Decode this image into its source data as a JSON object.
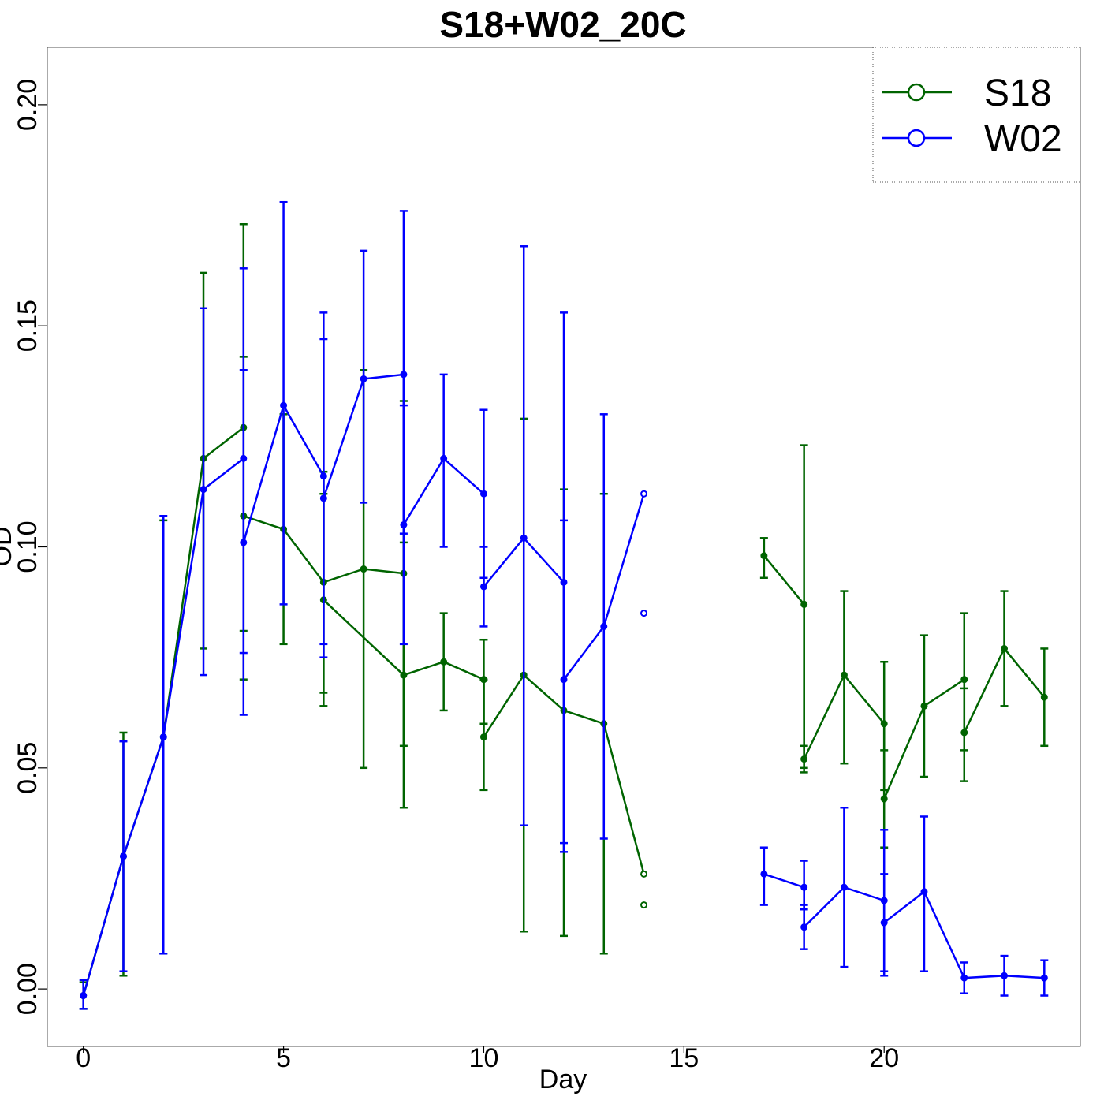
{
  "chart_data": {
    "type": "line",
    "title": "S18+W02_20C",
    "xlabel": "Day",
    "ylabel": "OD",
    "xlim": [
      -0.9,
      24.9
    ],
    "ylim": [
      -0.013,
      0.213
    ],
    "xticks": [
      0,
      5,
      10,
      15,
      20
    ],
    "yticks": [
      0.0,
      0.05,
      0.1,
      0.15,
      0.2
    ],
    "ytick_labels": [
      "0.00",
      "0.05",
      "0.10",
      "0.15",
      "0.20"
    ],
    "grid": false,
    "legend_position": "top-right",
    "series": [
      {
        "name": "S18",
        "color": "#006400",
        "traces": [
          {
            "points": [
              {
                "x": 0,
                "y": -0.0015,
                "lo": -0.0045,
                "hi": 0.0015
              },
              {
                "x": 1,
                "y": 0.03,
                "lo": 0.003,
                "hi": 0.058
              },
              {
                "x": 2,
                "y": 0.057,
                "lo": 0.008,
                "hi": 0.106
              },
              {
                "x": 3,
                "y": 0.12,
                "lo": 0.077,
                "hi": 0.162
              },
              {
                "x": 4,
                "y": 0.127,
                "lo": 0.081,
                "hi": 0.173
              }
            ]
          },
          {
            "points": [
              {
                "x": 4,
                "y": 0.107,
                "lo": 0.07,
                "hi": 0.143
              },
              {
                "x": 5,
                "y": 0.104,
                "lo": 0.078,
                "hi": 0.13
              },
              {
                "x": 6,
                "y": 0.092,
                "lo": 0.067,
                "hi": 0.117
              },
              {
                "x": 7,
                "y": 0.095,
                "lo": 0.05,
                "hi": 0.14
              },
              {
                "x": 8,
                "y": 0.094,
                "lo": 0.055,
                "hi": 0.133
              }
            ]
          },
          {
            "points": [
              {
                "x": 6,
                "y": 0.088,
                "lo": 0.064,
                "hi": 0.112
              },
              {
                "x": 8,
                "y": 0.071,
                "lo": 0.041,
                "hi": 0.101
              },
              {
                "x": 9,
                "y": 0.074,
                "lo": 0.063,
                "hi": 0.085
              },
              {
                "x": 10,
                "y": 0.07,
                "lo": 0.06,
                "hi": 0.079
              },
              {
                "x": 10,
                "y": 0.057,
                "lo": 0.045,
                "hi": 0.07
              },
              {
                "x": 11,
                "y": 0.071,
                "lo": 0.013,
                "hi": 0.129
              },
              {
                "x": 12,
                "y": 0.063,
                "lo": 0.012,
                "hi": 0.113
              },
              {
                "x": 13,
                "y": 0.06,
                "lo": 0.008,
                "hi": 0.112
              },
              {
                "x": 14,
                "y": 0.026
              }
            ]
          },
          {
            "points": [
              {
                "x": 14,
                "y": 0.019
              }
            ]
          },
          {
            "points": [
              {
                "x": 17,
                "y": 0.098,
                "lo": 0.093,
                "hi": 0.102
              },
              {
                "x": 18,
                "y": 0.087,
                "lo": 0.05,
                "hi": 0.123
              },
              {
                "x": 18,
                "y": 0.052,
                "lo": 0.049,
                "hi": 0.055
              },
              {
                "x": 19,
                "y": 0.071,
                "lo": 0.051,
                "hi": 0.09
              },
              {
                "x": 20,
                "y": 0.06,
                "lo": 0.045,
                "hi": 0.074
              },
              {
                "x": 20,
                "y": 0.043,
                "lo": 0.032,
                "hi": 0.054
              },
              {
                "x": 21,
                "y": 0.064,
                "lo": 0.048,
                "hi": 0.08
              },
              {
                "x": 22,
                "y": 0.07,
                "lo": 0.054,
                "hi": 0.085
              },
              {
                "x": 22,
                "y": 0.058,
                "lo": 0.047,
                "hi": 0.068
              },
              {
                "x": 23,
                "y": 0.077,
                "lo": 0.064,
                "hi": 0.09
              },
              {
                "x": 24,
                "y": 0.066,
                "lo": 0.055,
                "hi": 0.077
              }
            ]
          }
        ]
      },
      {
        "name": "W02",
        "color": "#0000ff",
        "traces": [
          {
            "points": [
              {
                "x": 0,
                "y": -0.0015,
                "lo": -0.0045,
                "hi": 0.002
              },
              {
                "x": 1,
                "y": 0.03,
                "lo": 0.004,
                "hi": 0.056
              },
              {
                "x": 2,
                "y": 0.057,
                "lo": 0.008,
                "hi": 0.107
              },
              {
                "x": 3,
                "y": 0.113,
                "lo": 0.071,
                "hi": 0.154
              },
              {
                "x": 4,
                "y": 0.12,
                "lo": 0.076,
                "hi": 0.163
              }
            ]
          },
          {
            "points": [
              {
                "x": 4,
                "y": 0.101,
                "lo": 0.062,
                "hi": 0.14
              },
              {
                "x": 5,
                "y": 0.132,
                "lo": 0.087,
                "hi": 0.178
              },
              {
                "x": 6,
                "y": 0.116,
                "lo": 0.078,
                "hi": 0.153
              },
              {
                "x": 6,
                "y": 0.111,
                "lo": 0.075,
                "hi": 0.147
              },
              {
                "x": 7,
                "y": 0.138,
                "lo": 0.11,
                "hi": 0.167
              },
              {
                "x": 8,
                "y": 0.139,
                "lo": 0.103,
                "hi": 0.176
              },
              {
                "x": 8,
                "y": 0.105,
                "lo": 0.078,
                "hi": 0.132
              },
              {
                "x": 9,
                "y": 0.12,
                "lo": 0.1,
                "hi": 0.139
              },
              {
                "x": 10,
                "y": 0.112,
                "lo": 0.093,
                "hi": 0.131
              },
              {
                "x": 10,
                "y": 0.091,
                "lo": 0.082,
                "hi": 0.1
              },
              {
                "x": 11,
                "y": 0.102,
                "lo": 0.037,
                "hi": 0.168
              },
              {
                "x": 12,
                "y": 0.092,
                "lo": 0.031,
                "hi": 0.153
              },
              {
                "x": 12,
                "y": 0.07,
                "lo": 0.033,
                "hi": 0.106
              },
              {
                "x": 13,
                "y": 0.082,
                "lo": 0.034,
                "hi": 0.13
              },
              {
                "x": 14,
                "y": 0.112
              }
            ]
          },
          {
            "points": [
              {
                "x": 14,
                "y": 0.085
              }
            ]
          },
          {
            "points": [
              {
                "x": 17,
                "y": 0.026,
                "lo": 0.019,
                "hi": 0.032
              },
              {
                "x": 18,
                "y": 0.023,
                "lo": 0.018,
                "hi": 0.029
              },
              {
                "x": 18,
                "y": 0.014,
                "lo": 0.009,
                "hi": 0.019
              },
              {
                "x": 19,
                "y": 0.023,
                "lo": 0.005,
                "hi": 0.041
              },
              {
                "x": 20,
                "y": 0.02,
                "lo": 0.004,
                "hi": 0.036
              },
              {
                "x": 20,
                "y": 0.015,
                "lo": 0.003,
                "hi": 0.026
              },
              {
                "x": 21,
                "y": 0.022,
                "lo": 0.004,
                "hi": 0.039
              },
              {
                "x": 22,
                "y": 0.0025,
                "lo": -0.001,
                "hi": 0.006
              },
              {
                "x": 23,
                "y": 0.003,
                "lo": -0.0015,
                "hi": 0.0075
              },
              {
                "x": 24,
                "y": 0.0025,
                "lo": -0.0015,
                "hi": 0.0065
              }
            ]
          }
        ]
      }
    ]
  }
}
